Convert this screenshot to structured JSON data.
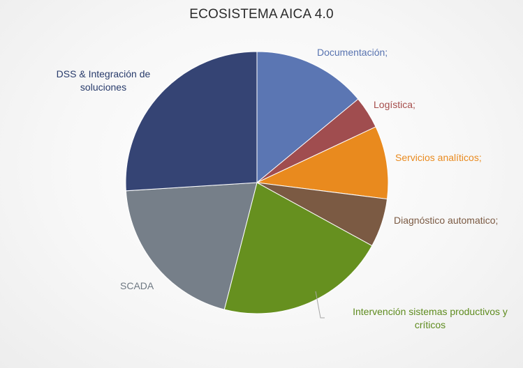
{
  "chart_data": {
    "type": "pie",
    "title": "ECOSISTEMA AICA 4.0",
    "slices": [
      {
        "label": "Documentación;",
        "value": 14,
        "color": "#5b76b3",
        "label_color": "#5873b0"
      },
      {
        "label": "Logística;",
        "value": 4,
        "color": "#a04d4f",
        "label_color": "#a54c4a"
      },
      {
        "label": "Servicios analíticos;",
        "value": 9,
        "color": "#e98a1e",
        "label_color": "#e98a1e"
      },
      {
        "label": "Diagnóstico automatico;",
        "value": 6,
        "color": "#7b5a43",
        "label_color": "#7b5a43"
      },
      {
        "label": "Intervención sistemas productivos y críticos",
        "value": 21,
        "color": "#66901f",
        "label_color": "#5e8b1e"
      },
      {
        "label": "SCADA",
        "value": 20,
        "color": "#767f89",
        "label_color": "#6e7882"
      },
      {
        "label": "DSS & Integración de soluciones",
        "value": 26,
        "color": "#354474",
        "label_color": "#283b6b"
      }
    ],
    "legend": "none"
  }
}
